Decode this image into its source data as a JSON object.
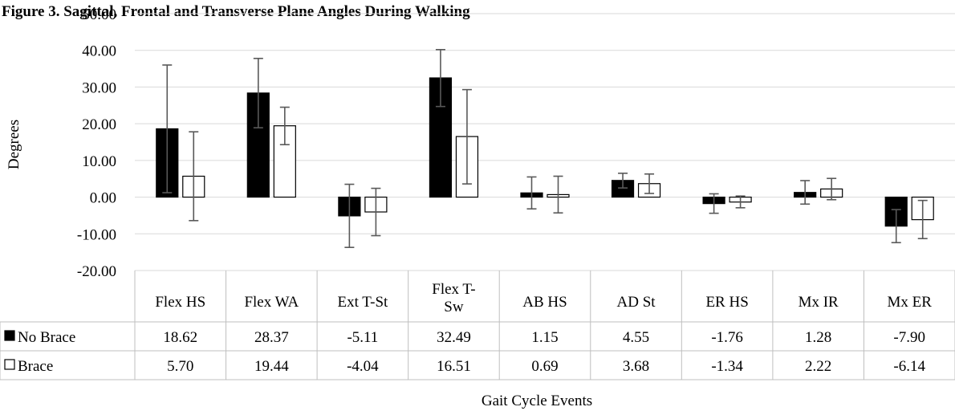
{
  "title": "Figure 3. Sagittal, Frontal and Transverse Plane Angles During Walking",
  "chart_data": {
    "type": "bar",
    "categories": [
      "Flex HS",
      "Flex WA",
      "Ext T-St",
      "Flex T-Sw",
      "AB HS",
      "AD St",
      "ER HS",
      "Mx IR",
      "Mx ER"
    ],
    "category_lines": [
      [
        "Flex HS"
      ],
      [
        "Flex WA"
      ],
      [
        "Ext T-St"
      ],
      [
        "Flex T-",
        "Sw"
      ],
      [
        "AB HS"
      ],
      [
        "AD St"
      ],
      [
        "ER HS"
      ],
      [
        "Mx IR"
      ],
      [
        "Mx ER"
      ]
    ],
    "series": [
      {
        "name": "No Brace",
        "values": [
          18.62,
          28.37,
          -5.11,
          32.49,
          1.15,
          4.55,
          -1.76,
          1.28,
          -7.9
        ],
        "value_labels": [
          "18.62",
          "28.37",
          "-5.11",
          "32.49",
          "1.15",
          "4.55",
          "-1.76",
          "1.28",
          "-7.90"
        ],
        "error_low": [
          1.2,
          18.9,
          -13.7,
          24.7,
          -3.2,
          2.5,
          -4.4,
          -1.9,
          -12.4
        ],
        "error_high": [
          36.0,
          37.8,
          3.5,
          40.2,
          5.5,
          6.5,
          0.9,
          4.5,
          -3.4
        ],
        "color": "#000000"
      },
      {
        "name": "Brace",
        "values": [
          5.7,
          19.44,
          -4.04,
          16.51,
          0.69,
          3.68,
          -1.34,
          2.22,
          -6.14
        ],
        "value_labels": [
          "5.70",
          "19.44",
          "-4.04",
          "16.51",
          "0.69",
          "3.68",
          "-1.34",
          "2.22",
          "-6.14"
        ],
        "error_low": [
          -6.4,
          14.3,
          -10.5,
          3.6,
          -4.3,
          1.0,
          -2.9,
          -0.7,
          -11.3
        ],
        "error_high": [
          17.8,
          24.5,
          2.4,
          29.3,
          5.7,
          6.3,
          0.3,
          5.1,
          -0.9
        ],
        "color": "#ffffff"
      }
    ],
    "ylabel": "Degrees",
    "xlabel": "Gait Cycle Events",
    "ylim": [
      -20,
      50
    ],
    "yticks": [
      "50.00",
      "40.00",
      "30.00",
      "20.00",
      "10.00",
      "0.00",
      "-10.00",
      "-20.00"
    ],
    "ytick_values": [
      50,
      40,
      30,
      20,
      10,
      0,
      -10,
      -20
    ],
    "gridlines": true,
    "legend": "data-table",
    "error_bar_color": "#595959",
    "gridline_color": "#d9d9d9"
  }
}
